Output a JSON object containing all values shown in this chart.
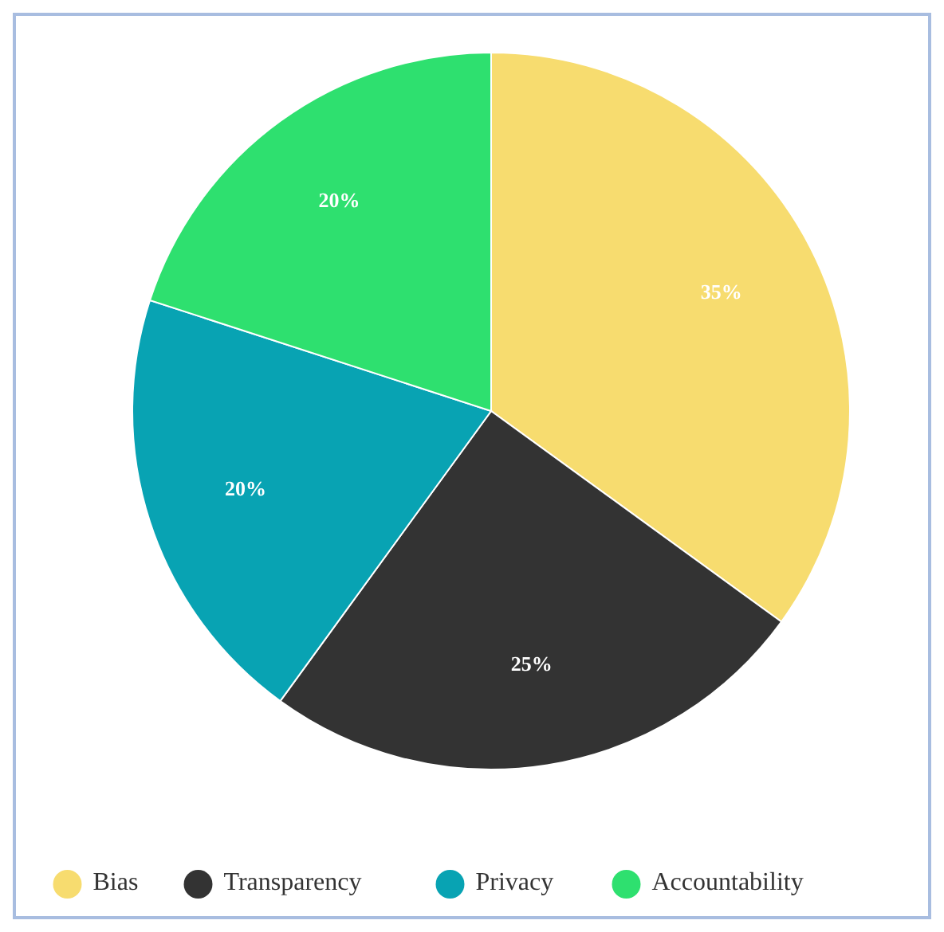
{
  "chart_data": {
    "type": "pie",
    "categories": [
      "Bias",
      "Transparency",
      "Privacy",
      "Accountability"
    ],
    "values": [
      35,
      25,
      20,
      20
    ],
    "colors": [
      "#f7dc6f",
      "#333333",
      "#08a3b3",
      "#2ee06f"
    ],
    "value_labels": [
      "35%",
      "25%",
      "20%",
      "20%"
    ],
    "legend": "bottom"
  }
}
